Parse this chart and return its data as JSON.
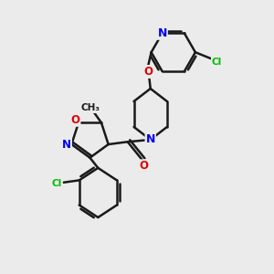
{
  "bg_color": "#ebebeb",
  "bond_color": "#1a1a1a",
  "bond_width": 1.8,
  "atom_colors": {
    "N": "#0000ee",
    "O": "#dd0000",
    "Cl": "#00bb00",
    "C": "#1a1a1a"
  },
  "font_size_atom": 8.5,
  "font_size_methyl": 7.5
}
